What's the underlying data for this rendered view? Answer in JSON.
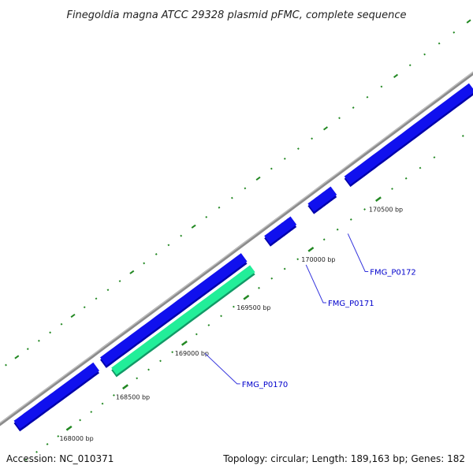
{
  "title": "Finegoldia magna ATCC 29328 plasmid pFMC, complete sequence",
  "accession": "Accession: NC_010371",
  "summary": "Topology: circular; Length: 189,163 bp; Genes: 182",
  "colors": {
    "backbone": "#8c8c8c",
    "forward_gene": "#1010ee",
    "reverse_gene": "#22ee99",
    "reverse_gene_edge": "#119966",
    "tick": "#228822",
    "label_text": "#0000cc",
    "label_leader": "#3333dd"
  },
  "ticks": [
    {
      "bp": 168000,
      "label": "168000 bp"
    },
    {
      "bp": 168500,
      "label": "168500 bp"
    },
    {
      "bp": 169000,
      "label": "169000 bp"
    },
    {
      "bp": 169500,
      "label": "169500 bp"
    },
    {
      "bp": 170000,
      "label": "170000 bp"
    },
    {
      "bp": 170500,
      "label": "170500 bp"
    }
  ],
  "genes": [
    {
      "start": 167700,
      "end": 168420,
      "strand": "forward"
    },
    {
      "start": 168480,
      "end": 169640,
      "strand": "forward"
    },
    {
      "start": 168500,
      "end": 169640,
      "strand": "reverse",
      "name": "FMG_P0170"
    },
    {
      "start": 169820,
      "end": 170020,
      "strand": "forward",
      "name": "FMG_P0171"
    },
    {
      "start": 170150,
      "end": 170320,
      "strand": "forward",
      "name": "FMG_P0172"
    },
    {
      "start": 170420,
      "end": 171300,
      "strand": "forward"
    }
  ]
}
